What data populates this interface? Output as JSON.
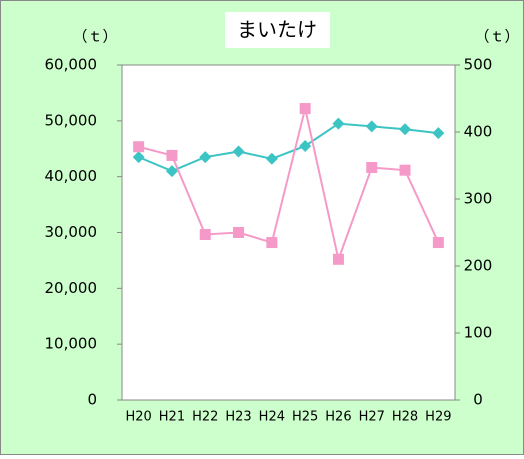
{
  "chart_data": {
    "type": "line",
    "title": "まいたけ",
    "y_label": "（ｔ）",
    "y2_label": "（ｔ）",
    "categories": [
      "H20",
      "H21",
      "H22",
      "H23",
      "H24",
      "H25",
      "H26",
      "H27",
      "H28",
      "H29"
    ],
    "series": [
      {
        "color": "#3cc4c4",
        "marker": "diamond",
        "values": [
          43500,
          41000,
          43500,
          44500,
          43200,
          45500,
          49500,
          49000,
          48500,
          47800
        ]
      },
      {
        "color": "#f59ac8",
        "marker": "square",
        "axis": "y2",
        "values": [
          378,
          365,
          247,
          250,
          235,
          435,
          210,
          347,
          343,
          235
        ]
      }
    ],
    "ylim": [
      0,
      60000
    ],
    "yticks": [
      0,
      {
        "value": 10000,
        "label": "10,000"
      },
      {
        "value": 20000,
        "label": "20,000"
      },
      {
        "value": 30000,
        "label": "30,000"
      },
      {
        "value": 40000,
        "label": "40,000"
      },
      {
        "value": 50000,
        "label": "50,000"
      },
      {
        "value": 60000,
        "label": "60,000"
      }
    ],
    "y2lim": [
      0,
      500
    ],
    "y2ticks": [
      0,
      100,
      200,
      300,
      400,
      500
    ]
  }
}
